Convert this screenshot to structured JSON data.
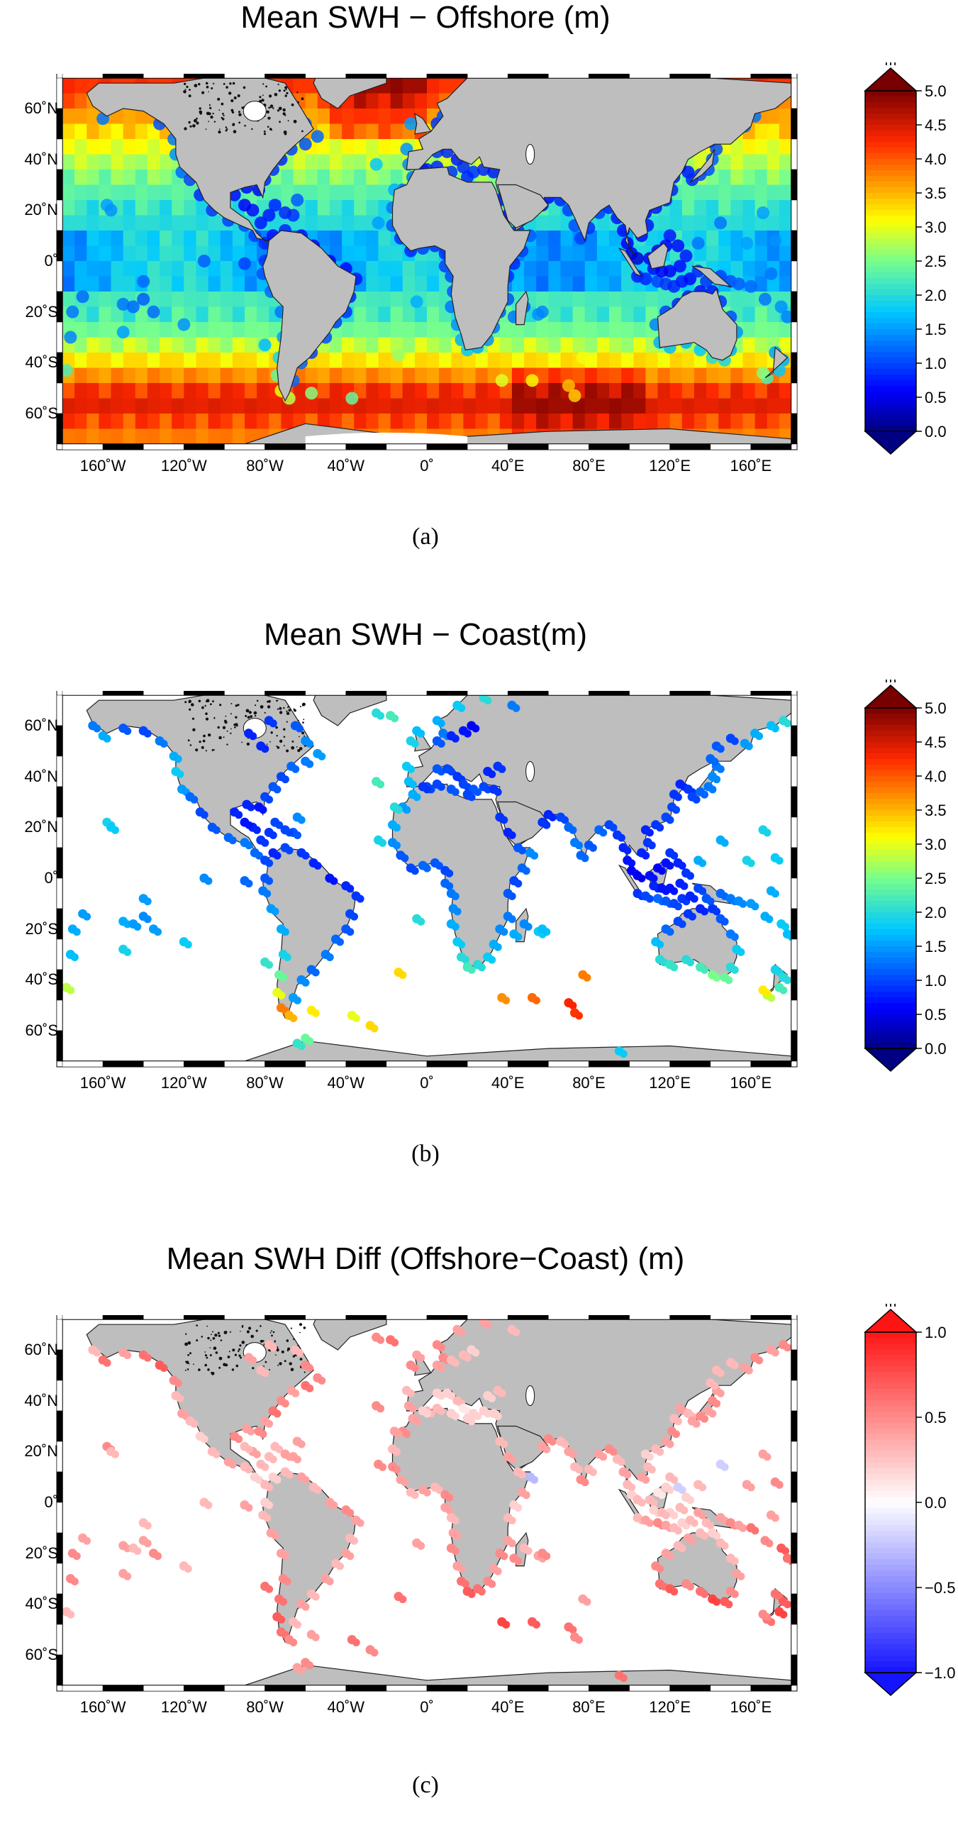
{
  "panels": [
    {
      "id": "a",
      "title": "Mean SWH − Offshore (m)",
      "caption": "(a)",
      "mode": "offshore",
      "colorbar": {
        "unit": "m",
        "ticks": [
          "5.0",
          "4.5",
          "4.0",
          "3.5",
          "3.0",
          "2.5",
          "2.0",
          "1.5",
          "1.0",
          "0.5",
          "0.0"
        ],
        "range": [
          0.0,
          5.0
        ],
        "scheme": "jet"
      }
    },
    {
      "id": "b",
      "title": "Mean SWH − Coast(m)",
      "caption": "(b)",
      "mode": "coast",
      "colorbar": {
        "unit": "m",
        "ticks": [
          "5.0",
          "4.5",
          "4.0",
          "3.5",
          "3.0",
          "2.5",
          "2.0",
          "1.5",
          "1.0",
          "0.5",
          "0.0"
        ],
        "range": [
          0.0,
          5.0
        ],
        "scheme": "jet"
      }
    },
    {
      "id": "c",
      "title": "Mean SWH Diff (Offshore−Coast) (m)",
      "caption": "(c)",
      "mode": "diff",
      "colorbar": {
        "unit": "m",
        "ticks": [
          "1.0",
          "0.5",
          "0.0",
          "−0.5",
          "−1.0"
        ],
        "range": [
          -1.0,
          1.0
        ],
        "scheme": "bwr"
      }
    }
  ],
  "map": {
    "lon_ticks": [
      "160˚W",
      "120˚W",
      "80˚W",
      "40˚W",
      "0˚",
      "40˚E",
      "80˚E",
      "120˚E",
      "160˚E"
    ],
    "lon_values": [
      -160,
      -120,
      -80,
      -40,
      0,
      40,
      80,
      120,
      160
    ],
    "lat_ticks": [
      "60˚N",
      "40˚N",
      "20˚N",
      "0˚",
      "20˚S",
      "40˚S",
      "60˚S"
    ],
    "lat_values": [
      60,
      40,
      20,
      0,
      -20,
      -40,
      -60
    ],
    "lon_range": [
      -180,
      180
    ],
    "lat_range": [
      -72,
      72
    ],
    "land_color": "#bebebe"
  }
}
